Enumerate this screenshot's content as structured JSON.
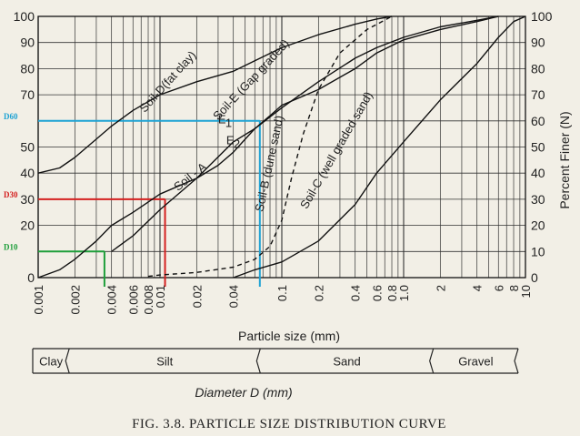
{
  "chart_data": {
    "type": "line",
    "title": "",
    "caption": "FIG. 3.8. PARTICLE SIZE DISTRIBUTION CURVE",
    "xlabel": "Particle size (mm)",
    "ylabel": "Percent Finer (N)",
    "xscale": "log",
    "xlim": [
      0.001,
      10
    ],
    "ylim": [
      0,
      100
    ],
    "x_ticks": [
      "0.001",
      "0.002",
      "0.004",
      "0.006",
      "0.008",
      "0.01",
      "0.02",
      "0.04",
      "0.1",
      "0.2",
      "0.4",
      "0.6",
      "0.8",
      "1.0",
      "2",
      "4",
      "6",
      "8",
      "10"
    ],
    "x_tick_values": [
      0.001,
      0.002,
      0.004,
      0.006,
      0.008,
      0.01,
      0.02,
      0.04,
      0.1,
      0.2,
      0.4,
      0.6,
      0.8,
      1.0,
      2,
      4,
      6,
      8,
      10
    ],
    "y_ticks_left": [
      "0",
      "20",
      "30",
      "40",
      "50",
      "70",
      "80",
      "90",
      "100"
    ],
    "y_tick_left_values": [
      0,
      20,
      30,
      40,
      50,
      70,
      80,
      90,
      100
    ],
    "y_ticks_right": [
      "0",
      "10",
      "20",
      "30",
      "40",
      "50",
      "60",
      "70",
      "80",
      "90",
      "100"
    ],
    "y_tick_right_values": [
      0,
      10,
      20,
      30,
      40,
      50,
      60,
      70,
      80,
      90,
      100
    ],
    "grid": true,
    "series": [
      {
        "name": "Soil-D(fat clay)",
        "style": "solid",
        "points": [
          [
            0.001,
            40
          ],
          [
            0.0015,
            42
          ],
          [
            0.002,
            46
          ],
          [
            0.003,
            53
          ],
          [
            0.004,
            58
          ],
          [
            0.006,
            64
          ],
          [
            0.01,
            70
          ],
          [
            0.02,
            75
          ],
          [
            0.04,
            79
          ],
          [
            0.06,
            83
          ],
          [
            0.1,
            88
          ],
          [
            0.2,
            93
          ],
          [
            0.4,
            97
          ],
          [
            0.6,
            99
          ],
          [
            0.8,
            100
          ]
        ]
      },
      {
        "name": "Soil - A",
        "style": "solid",
        "points": [
          [
            0.001,
            0
          ],
          [
            0.0015,
            3
          ],
          [
            0.002,
            7
          ],
          [
            0.003,
            14
          ],
          [
            0.004,
            20
          ],
          [
            0.006,
            25
          ],
          [
            0.01,
            32
          ],
          [
            0.02,
            38
          ],
          [
            0.03,
            43
          ],
          [
            0.04,
            48
          ],
          [
            0.05,
            53
          ],
          [
            0.06,
            57
          ],
          [
            0.1,
            65
          ],
          [
            0.2,
            75
          ],
          [
            0.4,
            84
          ],
          [
            0.6,
            88
          ],
          [
            1.0,
            92
          ],
          [
            2,
            96
          ],
          [
            4,
            98.5
          ],
          [
            6,
            100
          ]
        ]
      },
      {
        "name": "Soil-E (Gap graded)",
        "style": "solid",
        "points": [
          [
            0.004,
            10
          ],
          [
            0.006,
            16
          ],
          [
            0.01,
            26
          ],
          [
            0.02,
            38
          ],
          [
            0.04,
            52
          ],
          [
            0.06,
            57
          ],
          [
            0.08,
            62
          ],
          [
            0.1,
            66
          ],
          [
            0.2,
            72
          ],
          [
            0.4,
            80
          ],
          [
            0.6,
            86
          ],
          [
            1.0,
            91
          ],
          [
            2,
            95
          ],
          [
            4,
            98
          ],
          [
            6,
            100
          ]
        ]
      },
      {
        "name": "Soil-B (dune sand)",
        "style": "dashed",
        "points": [
          [
            0.008,
            0.5
          ],
          [
            0.01,
            1
          ],
          [
            0.02,
            2
          ],
          [
            0.04,
            4
          ],
          [
            0.06,
            7
          ],
          [
            0.08,
            12
          ],
          [
            0.1,
            22
          ],
          [
            0.12,
            38
          ],
          [
            0.15,
            55
          ],
          [
            0.2,
            72
          ],
          [
            0.3,
            86
          ],
          [
            0.5,
            95
          ],
          [
            0.8,
            100
          ]
        ]
      },
      {
        "name": "Soil-C (well graded sand)",
        "style": "solid",
        "points": [
          [
            0.04,
            0
          ],
          [
            0.06,
            3
          ],
          [
            0.1,
            6
          ],
          [
            0.2,
            14
          ],
          [
            0.4,
            28
          ],
          [
            0.6,
            40
          ],
          [
            1.0,
            52
          ],
          [
            2,
            68
          ],
          [
            4,
            82
          ],
          [
            6,
            92
          ],
          [
            8,
            98
          ],
          [
            10,
            100
          ]
        ]
      }
    ],
    "annotations": [
      {
        "text": "E",
        "sub": "1",
        "x": 0.03,
        "y": 59
      },
      {
        "text": "E",
        "sub": "2",
        "x": 0.035,
        "y": 51
      }
    ],
    "reference_lines": [
      {
        "label": "D60",
        "y": 60,
        "x": 0.066,
        "color": "#1fa3d4"
      },
      {
        "label": "D30",
        "y": 30,
        "x": 0.011,
        "color": "#d42020"
      },
      {
        "label": "D10",
        "y": 10,
        "x": 0.0035,
        "color": "#1e9e3a"
      }
    ],
    "size_bands": {
      "label": "Diameter D (mm)",
      "bands": [
        {
          "name": "Clay",
          "from": 0.001,
          "to": 0.002
        },
        {
          "name": "Silt",
          "from": 0.002,
          "to": 0.075
        },
        {
          "name": "Sand",
          "from": 0.075,
          "to": 2
        },
        {
          "name": "Gravel",
          "from": 2,
          "to": 10
        }
      ]
    }
  }
}
